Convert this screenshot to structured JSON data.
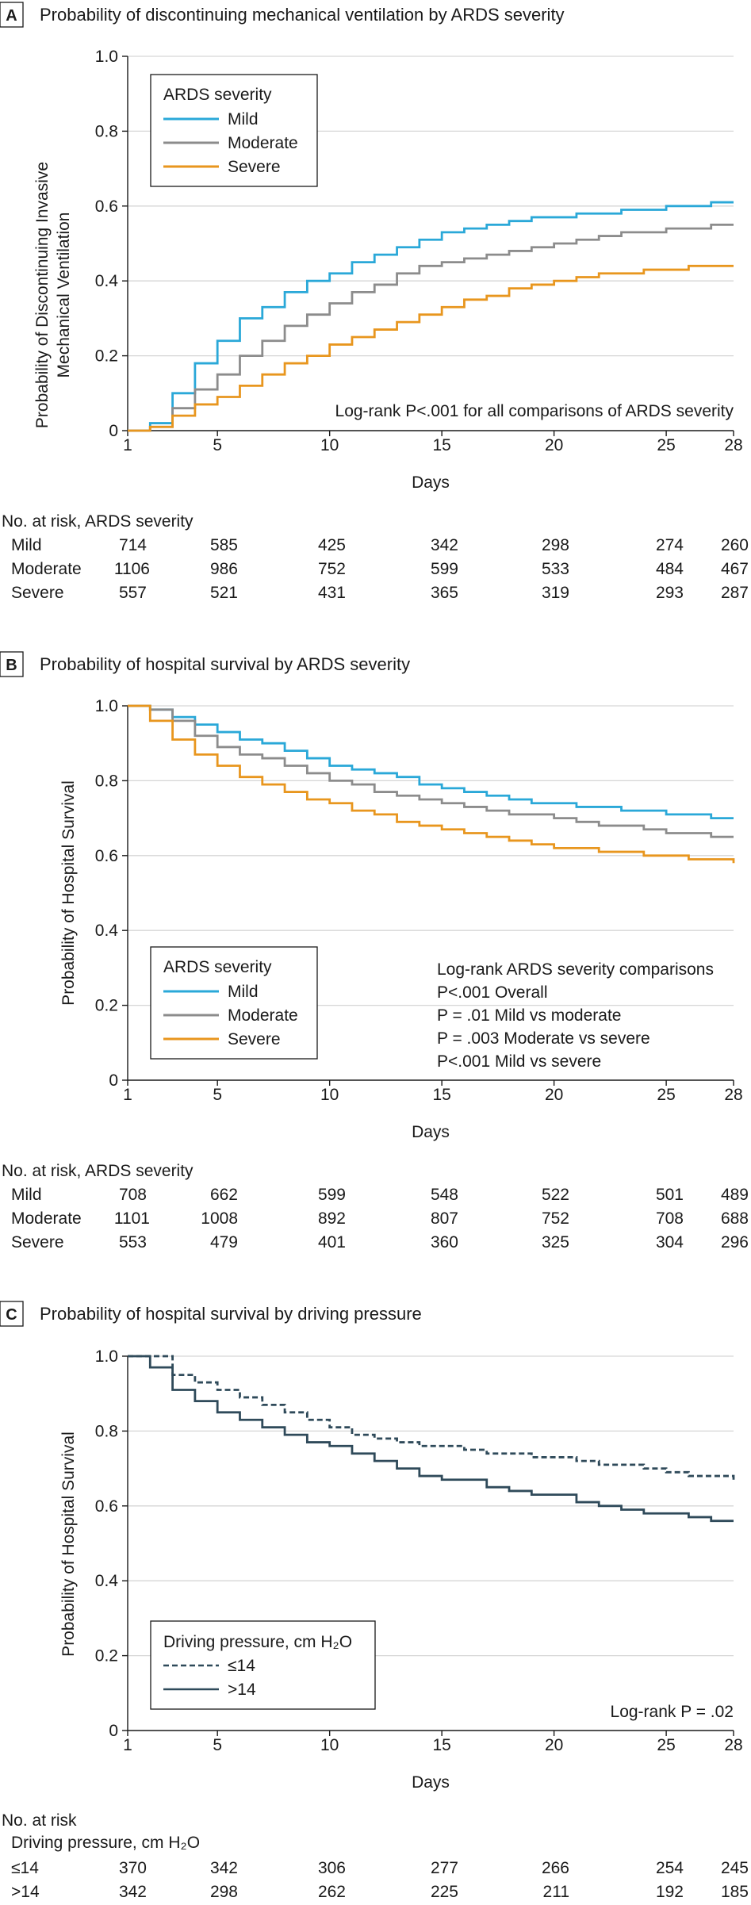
{
  "panels": [
    {
      "letter": "A",
      "title": "Probability of discontinuing mechanical ventilation by ARDS severity",
      "ylabel_lines": [
        "Probability of Discontinuing Invasive",
        "Mechanical Ventilation"
      ],
      "risk_header": "No. at risk, ARDS severity",
      "risk_subheader": "",
      "risk_rows": [
        {
          "label": "Mild",
          "values": [
            714,
            585,
            425,
            342,
            298,
            274,
            260
          ]
        },
        {
          "label": "Moderate",
          "values": [
            1106,
            986,
            752,
            599,
            533,
            484,
            467
          ]
        },
        {
          "label": "Severe",
          "values": [
            557,
            521,
            431,
            365,
            319,
            293,
            287
          ]
        }
      ]
    },
    {
      "letter": "B",
      "title": "Probability of hospital survival by ARDS severity",
      "ylabel_lines": [
        "Probability of Hospital Survival"
      ],
      "risk_header": "No. at risk, ARDS severity",
      "risk_subheader": "",
      "risk_rows": [
        {
          "label": "Mild",
          "values": [
            708,
            662,
            599,
            548,
            522,
            501,
            489
          ]
        },
        {
          "label": "Moderate",
          "values": [
            1101,
            1008,
            892,
            807,
            752,
            708,
            688
          ]
        },
        {
          "label": "Severe",
          "values": [
            553,
            479,
            401,
            360,
            325,
            304,
            296
          ]
        }
      ]
    },
    {
      "letter": "C",
      "title": "Probability of hospital survival by driving pressure",
      "ylabel_lines": [
        "Probability of Hospital Survival"
      ],
      "risk_header": "No. at risk",
      "risk_subheader": "Driving pressure, cm H₂O",
      "risk_rows": [
        {
          "label": "≤14",
          "values": [
            370,
            342,
            306,
            277,
            266,
            254,
            245
          ]
        },
        {
          "label": ">14",
          "values": [
            342,
            298,
            262,
            225,
            211,
            192,
            185
          ]
        }
      ]
    }
  ],
  "chart_data": [
    {
      "type": "line",
      "step": true,
      "title": "Probability of discontinuing mechanical ventilation by ARDS severity",
      "xlabel": "Days",
      "ylabel": "Probability of Discontinuing Invasive Mechanical Ventilation",
      "xlim": [
        1,
        28
      ],
      "ylim": [
        0,
        1.0
      ],
      "xticks": [
        1,
        5,
        10,
        15,
        20,
        25,
        28
      ],
      "yticks": [
        0,
        0.2,
        0.4,
        0.6,
        0.8,
        1.0
      ],
      "grid": "horizontal",
      "legend_title": "ARDS severity",
      "legend_position": "top-left",
      "annotations": [
        {
          "text": "Log-rank P<.001 for all comparisons of ARDS severity",
          "position": "bottom-right"
        }
      ],
      "series": [
        {
          "name": "Mild",
          "color": "#2aa8d8",
          "dashed": false,
          "x": [
            1,
            2,
            3,
            4,
            5,
            6,
            7,
            8,
            9,
            10,
            11,
            12,
            13,
            14,
            15,
            16,
            17,
            18,
            19,
            20,
            21,
            22,
            23,
            24,
            25,
            26,
            27,
            28
          ],
          "y": [
            0,
            0.02,
            0.1,
            0.18,
            0.24,
            0.3,
            0.33,
            0.37,
            0.4,
            0.42,
            0.45,
            0.47,
            0.49,
            0.51,
            0.53,
            0.54,
            0.55,
            0.56,
            0.57,
            0.57,
            0.58,
            0.58,
            0.59,
            0.59,
            0.6,
            0.6,
            0.61,
            0.61
          ]
        },
        {
          "name": "Moderate",
          "color": "#8c8c8c",
          "dashed": false,
          "x": [
            1,
            2,
            3,
            4,
            5,
            6,
            7,
            8,
            9,
            10,
            11,
            12,
            13,
            14,
            15,
            16,
            17,
            18,
            19,
            20,
            21,
            22,
            23,
            24,
            25,
            26,
            27,
            28
          ],
          "y": [
            0,
            0.01,
            0.06,
            0.11,
            0.15,
            0.2,
            0.24,
            0.28,
            0.31,
            0.34,
            0.37,
            0.39,
            0.42,
            0.44,
            0.45,
            0.46,
            0.47,
            0.48,
            0.49,
            0.5,
            0.51,
            0.52,
            0.53,
            0.53,
            0.54,
            0.54,
            0.55,
            0.55
          ]
        },
        {
          "name": "Severe",
          "color": "#e8961e",
          "dashed": false,
          "x": [
            1,
            2,
            3,
            4,
            5,
            6,
            7,
            8,
            9,
            10,
            11,
            12,
            13,
            14,
            15,
            16,
            17,
            18,
            19,
            20,
            21,
            22,
            23,
            24,
            25,
            26,
            27,
            28
          ],
          "y": [
            0,
            0.01,
            0.04,
            0.07,
            0.09,
            0.12,
            0.15,
            0.18,
            0.2,
            0.23,
            0.25,
            0.27,
            0.29,
            0.31,
            0.33,
            0.35,
            0.36,
            0.38,
            0.39,
            0.4,
            0.41,
            0.42,
            0.42,
            0.43,
            0.43,
            0.44,
            0.44,
            0.44
          ]
        }
      ]
    },
    {
      "type": "line",
      "step": true,
      "title": "Probability of hospital survival by ARDS severity",
      "xlabel": "Days",
      "ylabel": "Probability of Hospital Survival",
      "xlim": [
        1,
        28
      ],
      "ylim": [
        0,
        1.0
      ],
      "xticks": [
        1,
        5,
        10,
        15,
        20,
        25,
        28
      ],
      "yticks": [
        0,
        0.2,
        0.4,
        0.6,
        0.8,
        1.0
      ],
      "grid": "horizontal",
      "legend_title": "ARDS severity",
      "legend_position": "bottom-left",
      "annotations": [
        {
          "text": "Log-rank ARDS severity comparisons",
          "position": "bottom-right"
        },
        {
          "text": "P<.001 Overall",
          "position": "bottom-right"
        },
        {
          "text": "P = .01 Mild vs moderate",
          "position": "bottom-right"
        },
        {
          "text": "P = .003 Moderate vs severe",
          "position": "bottom-right"
        },
        {
          "text": "P<.001 Mild vs severe",
          "position": "bottom-right"
        }
      ],
      "series": [
        {
          "name": "Mild",
          "color": "#2aa8d8",
          "dashed": false,
          "x": [
            1,
            2,
            3,
            4,
            5,
            6,
            7,
            8,
            9,
            10,
            11,
            12,
            13,
            14,
            15,
            16,
            17,
            18,
            19,
            20,
            21,
            22,
            23,
            24,
            25,
            26,
            27,
            28
          ],
          "y": [
            1.0,
            0.99,
            0.97,
            0.95,
            0.93,
            0.91,
            0.9,
            0.88,
            0.86,
            0.84,
            0.83,
            0.82,
            0.81,
            0.79,
            0.78,
            0.77,
            0.76,
            0.75,
            0.74,
            0.74,
            0.73,
            0.73,
            0.72,
            0.72,
            0.71,
            0.71,
            0.7,
            0.7
          ]
        },
        {
          "name": "Moderate",
          "color": "#8c8c8c",
          "dashed": false,
          "x": [
            1,
            2,
            3,
            4,
            5,
            6,
            7,
            8,
            9,
            10,
            11,
            12,
            13,
            14,
            15,
            16,
            17,
            18,
            19,
            20,
            21,
            22,
            23,
            24,
            25,
            26,
            27,
            28
          ],
          "y": [
            1.0,
            0.99,
            0.96,
            0.92,
            0.89,
            0.87,
            0.86,
            0.84,
            0.82,
            0.8,
            0.79,
            0.77,
            0.76,
            0.75,
            0.74,
            0.73,
            0.72,
            0.71,
            0.71,
            0.7,
            0.69,
            0.68,
            0.68,
            0.67,
            0.66,
            0.66,
            0.65,
            0.65
          ]
        },
        {
          "name": "Severe",
          "color": "#e8961e",
          "dashed": false,
          "x": [
            1,
            2,
            3,
            4,
            5,
            6,
            7,
            8,
            9,
            10,
            11,
            12,
            13,
            14,
            15,
            16,
            17,
            18,
            19,
            20,
            21,
            22,
            23,
            24,
            25,
            26,
            27,
            28
          ],
          "y": [
            1.0,
            0.96,
            0.91,
            0.87,
            0.84,
            0.81,
            0.79,
            0.77,
            0.75,
            0.74,
            0.72,
            0.71,
            0.69,
            0.68,
            0.67,
            0.66,
            0.65,
            0.64,
            0.63,
            0.62,
            0.62,
            0.61,
            0.61,
            0.6,
            0.6,
            0.59,
            0.59,
            0.58
          ]
        }
      ]
    },
    {
      "type": "line",
      "step": true,
      "title": "Probability of hospital survival by driving pressure",
      "xlabel": "Days",
      "ylabel": "Probability of Hospital Survival",
      "xlim": [
        1,
        28
      ],
      "ylim": [
        0,
        1.0
      ],
      "xticks": [
        1,
        5,
        10,
        15,
        20,
        25,
        28
      ],
      "yticks": [
        0,
        0.2,
        0.4,
        0.6,
        0.8,
        1.0
      ],
      "grid": "horizontal",
      "legend_title": "Driving pressure, cm H₂O",
      "legend_position": "bottom-left",
      "annotations": [
        {
          "text": "Log-rank P = .02",
          "position": "bottom-right"
        }
      ],
      "series": [
        {
          "name": "≤14",
          "color": "#2f4a5a",
          "dashed": true,
          "x": [
            1,
            2,
            3,
            4,
            5,
            6,
            7,
            8,
            9,
            10,
            11,
            12,
            13,
            14,
            15,
            16,
            17,
            18,
            19,
            20,
            21,
            22,
            23,
            24,
            25,
            26,
            27,
            28
          ],
          "y": [
            1.0,
            1.0,
            0.95,
            0.93,
            0.91,
            0.89,
            0.87,
            0.85,
            0.83,
            0.81,
            0.79,
            0.78,
            0.77,
            0.76,
            0.76,
            0.75,
            0.74,
            0.74,
            0.73,
            0.73,
            0.72,
            0.71,
            0.71,
            0.7,
            0.69,
            0.68,
            0.68,
            0.67
          ]
        },
        {
          "name": ">14",
          "color": "#2f4a5a",
          "dashed": false,
          "x": [
            1,
            2,
            3,
            4,
            5,
            6,
            7,
            8,
            9,
            10,
            11,
            12,
            13,
            14,
            15,
            16,
            17,
            18,
            19,
            20,
            21,
            22,
            23,
            24,
            25,
            26,
            27,
            28
          ],
          "y": [
            1.0,
            0.97,
            0.91,
            0.88,
            0.85,
            0.83,
            0.81,
            0.79,
            0.77,
            0.76,
            0.74,
            0.72,
            0.7,
            0.68,
            0.67,
            0.67,
            0.65,
            0.64,
            0.63,
            0.63,
            0.61,
            0.6,
            0.59,
            0.58,
            0.58,
            0.57,
            0.56,
            0.56
          ]
        }
      ]
    }
  ]
}
